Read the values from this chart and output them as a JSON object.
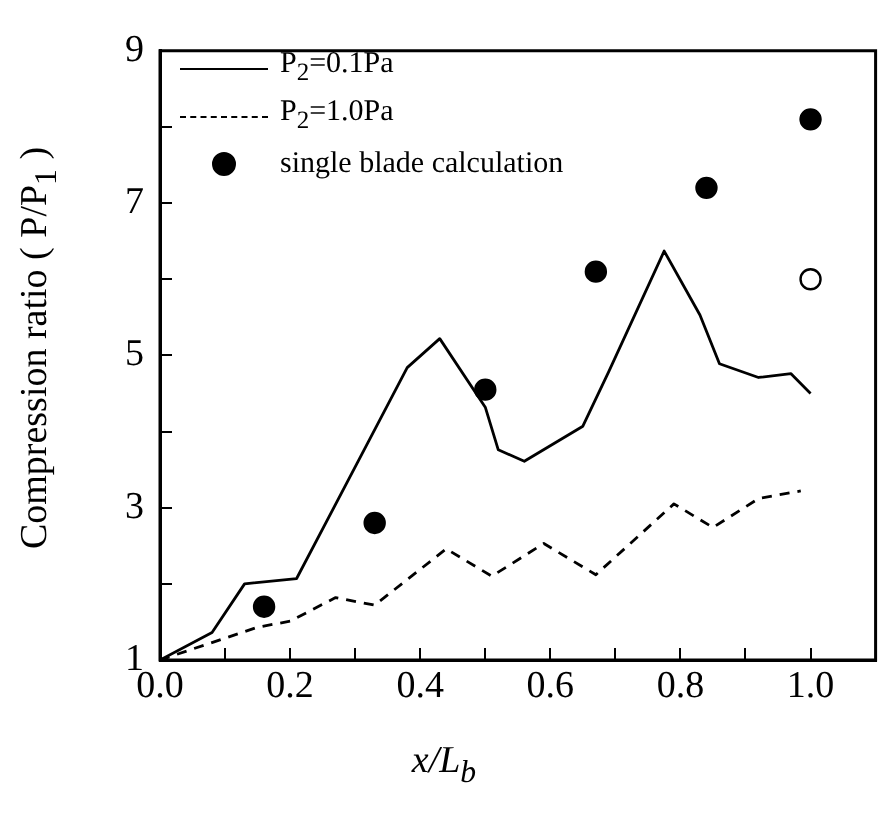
{
  "chart_data": {
    "type": "line",
    "xlabel": "x/L$_{b}$",
    "ylabel": "Compression ratio ( P/P$_{1}$ )",
    "xlim": [
      0,
      1.1
    ],
    "xticks": [
      {
        "value": 0,
        "label": "0.0"
      },
      {
        "value": 0.1,
        "label": null
      },
      {
        "value": 0.2,
        "label": "0.2"
      },
      {
        "value": 0.3,
        "label": null
      },
      {
        "value": 0.4,
        "label": "0.4"
      },
      {
        "value": 0.5,
        "label": null
      },
      {
        "value": 0.6,
        "label": "0.6"
      },
      {
        "value": 0.7,
        "label": null
      },
      {
        "value": 0.8,
        "label": "0.8"
      },
      {
        "value": 0.9,
        "label": null
      },
      {
        "value": 1,
        "label": "1.0"
      }
    ],
    "ylim": [
      1,
      9
    ],
    "yticks": [
      1,
      {
        "value": 2,
        "label": null
      },
      3,
      {
        "value": 4,
        "label": null
      },
      5,
      {
        "value": 6,
        "label": null
      },
      7,
      {
        "value": 8,
        "label": null
      },
      9
    ],
    "grid": false,
    "legend": "top left",
    "series": [
      {
        "name": "P$_{2}$=0.1Pa",
        "line_style": "solid",
        "marker": "none",
        "color": "#000000",
        "x": [
          0,
          0.08,
          0.13,
          0.21,
          0.32,
          0.38,
          0.43,
          0.5,
          0.52,
          0.56,
          0.65,
          0.69,
          0.775,
          0.83,
          0.86,
          0.92,
          0.97,
          1.0
        ],
        "values": [
          1,
          1.36,
          2.0,
          2.07,
          3.86,
          4.84,
          5.22,
          4.32,
          3.76,
          3.61,
          4.07,
          4.79,
          6.37,
          5.53,
          4.89,
          4.71,
          4.76,
          4.5
        ]
      },
      {
        "name": "P$_{2}$=1.0Pa",
        "line_style": "dashed",
        "marker": "none",
        "color": "#000000",
        "x": [
          0,
          0.15,
          0.2,
          0.27,
          0.33,
          0.44,
          0.51,
          0.59,
          0.67,
          0.79,
          0.85,
          0.92,
          0.985
        ],
        "values": [
          1,
          1.43,
          1.51,
          1.82,
          1.72,
          2.46,
          2.1,
          2.53,
          2.12,
          3.05,
          2.74,
          3.12,
          3.22
        ]
      },
      {
        "name": "single blade calculation",
        "type": "scatter",
        "marker": "circle",
        "color": "#000000",
        "x": [
          0.16,
          0.33,
          0.5,
          0.67,
          0.84,
          1.0
        ],
        "values": [
          1.7,
          2.8,
          4.55,
          6.1,
          7.2,
          8.1
        ]
      },
      {
        "type": "scatter",
        "marker": "circle",
        "color": "#ffffff",
        "x": [
          1.0
        ],
        "values": [
          6.0
        ]
      }
    ]
  }
}
